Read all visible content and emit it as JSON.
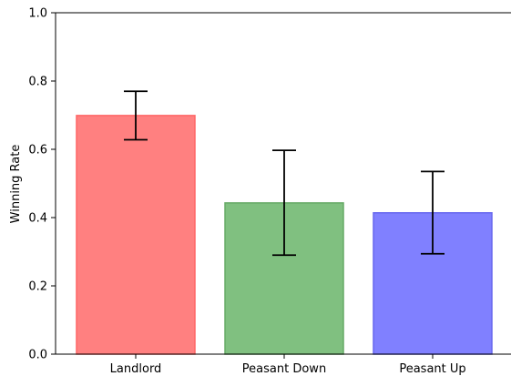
{
  "chart_data": {
    "type": "bar",
    "title": "",
    "xlabel": "",
    "ylabel": "Winning Rate",
    "ylim": [
      0.0,
      1.0
    ],
    "yticks": [
      0.0,
      0.2,
      0.4,
      0.6,
      0.8,
      1.0
    ],
    "ytick_labels": [
      "0.0",
      "0.2",
      "0.4",
      "0.6",
      "0.8",
      "1.0"
    ],
    "categories": [
      "Landlord",
      "Peasant Down",
      "Peasant Up"
    ],
    "values": [
      0.699,
      0.443,
      0.414
    ],
    "error_lower": [
      0.628,
      0.29,
      0.294
    ],
    "error_upper": [
      0.77,
      0.597,
      0.535
    ],
    "colors": [
      "#ff8080",
      "#80c080",
      "#8080ff"
    ],
    "edge_colors": [
      "#ff6666",
      "#66aa66",
      "#6666ee"
    ],
    "grid": false,
    "legend": false
  }
}
